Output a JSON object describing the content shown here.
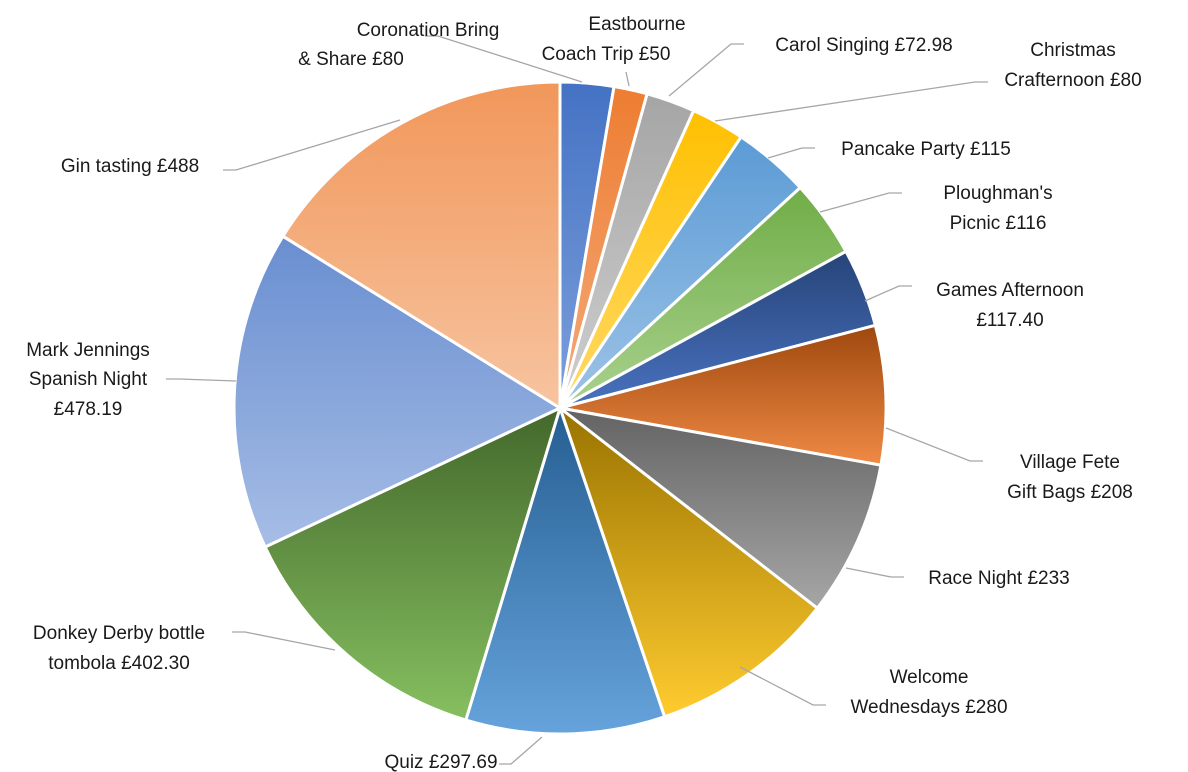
{
  "chart_data": {
    "type": "pie",
    "title": "",
    "start": "12 o'clock",
    "direction": "clockwise",
    "legend": "none (category labels placed outside the pie with leader lines)",
    "slices": [
      {
        "name": "Coronation Bring & Share",
        "value": 80,
        "label": "Coronation Bring & Share £80",
        "color_top": "#4472c4",
        "color_bottom": "#7da0db"
      },
      {
        "name": "Eastbourne Coach Trip",
        "value": 50,
        "label": "Eastbourne Coach Trip £50",
        "color_top": "#ed7d31",
        "color_bottom": "#f4aa7a"
      },
      {
        "name": "Carol Singing",
        "value": 72.98,
        "label": "Carol Singing £72.98",
        "color_top": "#a5a5a5",
        "color_bottom": "#cfcfcf"
      },
      {
        "name": "Christmas Crafternoon",
        "value": 80,
        "label": "Christmas Crafternoon £80",
        "color_top": "#ffc000",
        "color_bottom": "#ffd966"
      },
      {
        "name": "Pancake Party",
        "value": 115,
        "label": "Pancake Party £115",
        "color_top": "#5b9bd5",
        "color_bottom": "#9dc3e6"
      },
      {
        "name": "Ploughman's Picnic",
        "value": 116,
        "label": "Ploughman's Picnic £116",
        "color_top": "#70ad47",
        "color_bottom": "#a9d18e"
      },
      {
        "name": "Games Afternoon",
        "value": 117.4,
        "label": "Games Afternoon £117.40",
        "color_top": "#264478",
        "color_bottom": "#4a72c0"
      },
      {
        "name": "Village Fete Gift Bags",
        "value": 208,
        "label": "Village Fete Gift Bags £208",
        "color_top": "#9e480e",
        "color_bottom": "#f08a45"
      },
      {
        "name": "Race Night",
        "value": 233,
        "label": "Race Night £233",
        "color_top": "#636363",
        "color_bottom": "#a6a6a6"
      },
      {
        "name": "Welcome Wednesdays",
        "value": 280,
        "label": "Welcome Wednesdays £280",
        "color_top": "#997300",
        "color_bottom": "#ffcb2f"
      },
      {
        "name": "Quiz",
        "value": 297.69,
        "label": "Quiz £297.69",
        "color_top": "#255e91",
        "color_bottom": "#66a3dc"
      },
      {
        "name": "Donkey Derby bottle tombola",
        "value": 402.3,
        "label": "Donkey Derby bottle tombola £402.30",
        "color_top": "#43682b",
        "color_bottom": "#86bf60"
      },
      {
        "name": "Mark Jennings Spanish Night",
        "value": 478.19,
        "label": "Mark Jennings Spanish Night £478.19",
        "color_top": "#698ed0",
        "color_bottom": "#a6bde6"
      },
      {
        "name": "Gin tasting",
        "value": 488,
        "label": "Gin tasting £488",
        "color_top": "#f1975a",
        "color_bottom": "#f7c4a0"
      }
    ]
  }
}
